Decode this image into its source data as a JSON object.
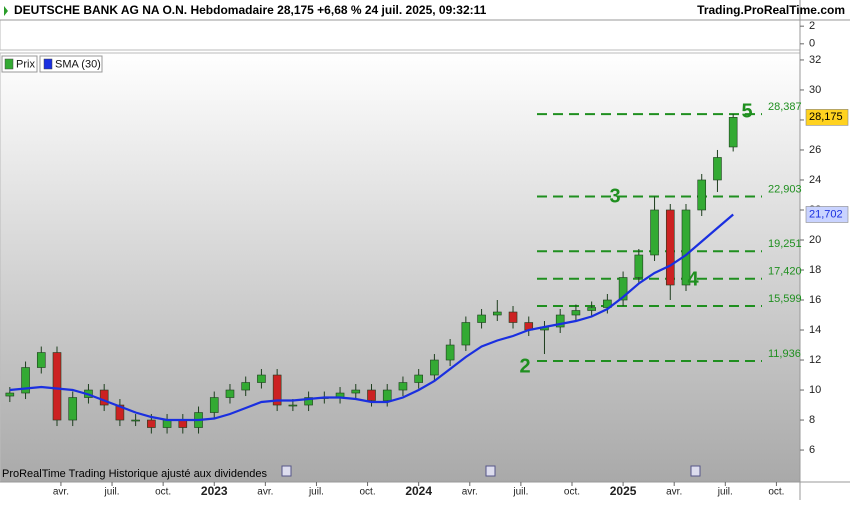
{
  "chart_data": {
    "type": "candlestick",
    "title": "DEUTSCHE BANK AG NA O.N. Hebdomadaire 28,175 +6,68 % 24 juil. 2025, 09:32:11",
    "source": "Trading.ProRealTime.com",
    "footer": "ProRealTime Trading  Historique ajusté aux dividendes",
    "x": [
      0,
      4,
      8,
      12,
      16,
      20,
      24,
      28,
      32,
      36,
      40,
      44,
      48,
      52,
      56,
      60,
      64,
      68,
      72,
      76,
      80,
      84,
      88,
      92,
      96,
      100,
      104,
      108,
      112,
      116,
      120,
      124,
      128,
      132,
      136,
      140,
      144,
      148,
      152,
      156,
      160,
      164,
      168,
      172,
      176,
      180,
      184
    ],
    "xlim": [
      -2.5,
      201
    ],
    "xticks": [
      {
        "value": 13,
        "label": "avr."
      },
      {
        "value": 26,
        "label": "juil."
      },
      {
        "value": 39,
        "label": "oct."
      },
      {
        "value": 52,
        "label": "2023"
      },
      {
        "value": 65,
        "label": "avr."
      },
      {
        "value": 78,
        "label": "juil."
      },
      {
        "value": 91,
        "label": "oct."
      },
      {
        "value": 104,
        "label": "2024"
      },
      {
        "value": 117,
        "label": "avr."
      },
      {
        "value": 130,
        "label": "juil."
      },
      {
        "value": 143,
        "label": "oct."
      },
      {
        "value": 156,
        "label": "2025"
      },
      {
        "value": 169,
        "label": "avr."
      },
      {
        "value": 182,
        "label": "juil."
      },
      {
        "value": 195,
        "label": "oct."
      }
    ],
    "ylim": [
      3.87,
      32.33
    ],
    "yticks": [
      6,
      8,
      10,
      12,
      14,
      16,
      18,
      20,
      22,
      24,
      26,
      28,
      30,
      32
    ],
    "indicator_ylim": [
      -0.7,
      2.7
    ],
    "indicator_yticks": [
      2,
      0
    ],
    "series": [
      {
        "name": "Prix",
        "color": "#33aa33",
        "down_color": "#cc2222",
        "open": [
          9.6,
          9.8,
          11.5,
          12.5,
          8.0,
          9.5,
          10.0,
          9.0,
          8.0,
          8.0,
          7.5,
          8.0,
          7.5,
          8.5,
          9.5,
          10.0,
          10.5,
          11.0,
          9.0,
          9.0,
          9.5,
          9.5,
          9.8,
          10.0,
          9.3,
          10.0,
          10.5,
          11.0,
          12.0,
          13.0,
          14.5,
          15.0,
          15.2,
          14.5,
          14.0,
          14.2,
          15.0,
          15.3,
          15.5,
          16.0,
          17.5,
          19.0,
          22.0,
          17.0,
          22.0,
          24.0,
          26.2
        ],
        "high": [
          10.2,
          11.9,
          12.9,
          12.9,
          9.9,
          10.4,
          10.4,
          9.4,
          8.4,
          8.4,
          8.4,
          8.4,
          8.9,
          9.9,
          10.4,
          10.9,
          11.4,
          11.4,
          9.4,
          9.9,
          9.9,
          10.2,
          10.4,
          10.4,
          10.4,
          10.9,
          11.4,
          12.4,
          13.4,
          14.9,
          15.4,
          16.0,
          15.6,
          14.9,
          14.6,
          15.4,
          15.7,
          15.9,
          16.4,
          17.9,
          19.4,
          22.9,
          22.4,
          22.4,
          24.4,
          26.0,
          28.4
        ],
        "low": [
          9.2,
          9.4,
          11.1,
          7.6,
          7.6,
          9.1,
          8.6,
          7.6,
          7.6,
          7.1,
          7.1,
          7.1,
          7.1,
          8.1,
          9.1,
          9.6,
          10.1,
          8.6,
          8.6,
          8.6,
          9.1,
          9.1,
          9.4,
          8.9,
          8.9,
          9.6,
          10.1,
          10.6,
          11.6,
          12.6,
          14.1,
          14.6,
          14.1,
          13.6,
          12.4,
          13.8,
          14.6,
          14.9,
          15.1,
          15.6,
          17.1,
          18.6,
          16.0,
          16.6,
          21.6,
          23.2,
          25.9
        ],
        "close": [
          9.8,
          11.5,
          12.5,
          8.0,
          9.5,
          10.0,
          9.0,
          8.0,
          8.0,
          7.5,
          8.0,
          7.5,
          8.5,
          9.5,
          10.0,
          10.5,
          11.0,
          9.0,
          9.0,
          9.5,
          9.5,
          9.8,
          10.0,
          9.3,
          10.0,
          10.5,
          11.0,
          12.0,
          13.0,
          14.5,
          15.0,
          15.2,
          14.5,
          14.0,
          14.2,
          15.0,
          15.3,
          15.5,
          16.0,
          17.5,
          19.0,
          22.0,
          17.0,
          22.0,
          24.0,
          25.5,
          28.175
        ]
      },
      {
        "name": "SMA (30)",
        "color": "#1a2fe0",
        "values": [
          10.0,
          10.1,
          10.2,
          10.1,
          10.0,
          9.7,
          9.3,
          8.9,
          8.5,
          8.2,
          8.0,
          8.0,
          8.0,
          8.1,
          8.4,
          8.8,
          9.2,
          9.3,
          9.3,
          9.4,
          9.5,
          9.5,
          9.4,
          9.2,
          9.2,
          9.5,
          10.0,
          10.6,
          11.4,
          12.2,
          12.9,
          13.3,
          13.6,
          14.0,
          14.2,
          14.4,
          14.6,
          14.9,
          15.4,
          16.2,
          17.1,
          17.8,
          18.3,
          19.0,
          19.9,
          20.8,
          21.702
        ]
      }
    ],
    "last_price": {
      "value": 28.175,
      "label": "28,175"
    },
    "sma_last": {
      "value": 21.702,
      "label": "21,702"
    },
    "levels": [
      {
        "value": 28.387,
        "label": "28,387"
      },
      {
        "value": 22.903,
        "label": "22,903"
      },
      {
        "value": 19.251,
        "label": "19,251"
      },
      {
        "value": 17.42,
        "label": "17,420"
      },
      {
        "value": 15.599,
        "label": "15,599"
      },
      {
        "value": 11.936,
        "label": "11,936"
      }
    ],
    "level_color": "#1f8f1f",
    "annotations": [
      "2",
      "3",
      "4",
      "5"
    ]
  }
}
